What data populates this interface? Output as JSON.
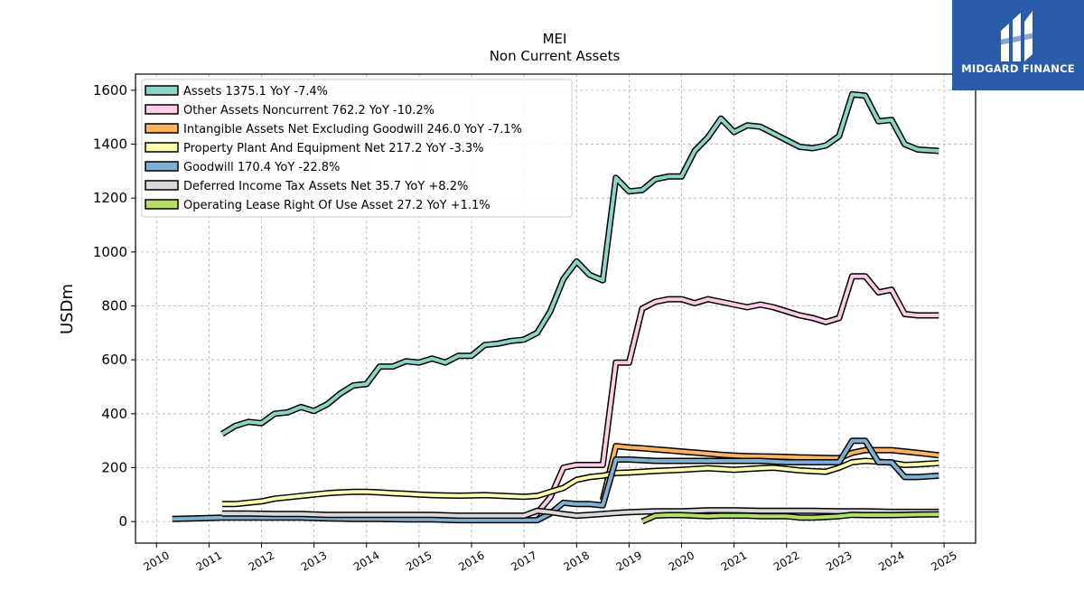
{
  "header": {
    "title": "MEI",
    "subtitle": "Non Current  Assets"
  },
  "logo": {
    "text": "MIDGARD FINANCE",
    "background": "#2a5caa"
  },
  "chart_data": {
    "type": "line",
    "ylabel": "USDm",
    "xlabel": "",
    "xlim": [
      2009.6,
      2025.6
    ],
    "ylim": [
      -80,
      1660
    ],
    "x_ticks": [
      "2010",
      "2011",
      "2012",
      "2013",
      "2014",
      "2015",
      "2016",
      "2017",
      "2018",
      "2019",
      "2020",
      "2021",
      "2022",
      "2023",
      "2024",
      "2025"
    ],
    "y_ticks": [
      "0",
      "200",
      "400",
      "600",
      "800",
      "1000",
      "1200",
      "1400",
      "1600"
    ],
    "grid": true,
    "legend_position": "upper-left",
    "series": [
      {
        "name": "Assets  1375.1 YoY -7.4%",
        "color": "#8dd3c7",
        "x": [
          2011.25,
          2011.5,
          2011.75,
          2012.0,
          2012.25,
          2012.5,
          2012.75,
          2013.0,
          2013.25,
          2013.5,
          2013.75,
          2014.0,
          2014.25,
          2014.5,
          2014.75,
          2015.0,
          2015.25,
          2015.5,
          2015.75,
          2016.0,
          2016.25,
          2016.5,
          2016.75,
          2017.0,
          2017.25,
          2017.5,
          2017.75,
          2018.0,
          2018.25,
          2018.5,
          2018.75,
          2019.0,
          2019.25,
          2019.5,
          2019.75,
          2020.0,
          2020.25,
          2020.5,
          2020.75,
          2021.0,
          2021.25,
          2021.5,
          2021.75,
          2022.0,
          2022.25,
          2022.5,
          2022.75,
          2023.0,
          2023.25,
          2023.5,
          2023.75,
          2024.0,
          2024.25,
          2024.5,
          2024.9
        ],
        "values": [
          325,
          355,
          370,
          365,
          400,
          405,
          425,
          410,
          435,
          475,
          505,
          510,
          575,
          575,
          595,
          590,
          605,
          590,
          615,
          615,
          655,
          660,
          670,
          675,
          700,
          780,
          900,
          965,
          915,
          895,
          1275,
          1225,
          1230,
          1270,
          1280,
          1280,
          1375,
          1425,
          1495,
          1445,
          1470,
          1465,
          1440,
          1415,
          1390,
          1385,
          1395,
          1430,
          1585,
          1580,
          1485,
          1490,
          1400,
          1380,
          1375
        ]
      },
      {
        "name": "Other Assets Noncurrent  762.2 YoY -10.2%",
        "color": "#fccde5",
        "x": [
          2017.2,
          2017.5,
          2017.75,
          2018.0,
          2018.25,
          2018.5,
          2018.75,
          2019.0,
          2019.25,
          2019.5,
          2019.75,
          2020.0,
          2020.25,
          2020.5,
          2020.75,
          2021.0,
          2021.25,
          2021.5,
          2021.75,
          2022.0,
          2022.25,
          2022.5,
          2022.75,
          2023.0,
          2023.25,
          2023.5,
          2023.75,
          2024.0,
          2024.25,
          2024.5,
          2024.9
        ],
        "values": [
          20,
          90,
          200,
          210,
          210,
          210,
          590,
          590,
          790,
          815,
          825,
          825,
          810,
          825,
          815,
          805,
          795,
          805,
          795,
          780,
          765,
          755,
          740,
          755,
          910,
          910,
          850,
          860,
          770,
          765,
          765
        ]
      },
      {
        "name": "Intangible Assets Net Excluding Goodwill  246.0 YoY -7.1%",
        "color": "#fdb462",
        "x": [
          2018.5,
          2018.75,
          2019.0,
          2019.25,
          2019.5,
          2019.75,
          2020.0,
          2020.25,
          2020.5,
          2020.75,
          2021.0,
          2021.25,
          2021.5,
          2021.75,
          2022.0,
          2022.25,
          2022.5,
          2022.75,
          2023.0,
          2023.25,
          2023.5,
          2023.75,
          2024.0,
          2024.25,
          2024.5,
          2024.9
        ],
        "values": [
          80,
          280,
          275,
          272,
          268,
          264,
          260,
          256,
          252,
          248,
          245,
          243,
          242,
          241,
          240,
          238,
          237,
          236,
          235,
          255,
          265,
          265,
          265,
          260,
          255,
          246
        ]
      },
      {
        "name": "Property Plant And Equipment Net  217.2 YoY -3.3%",
        "color": "#ffffb3",
        "x": [
          2011.25,
          2011.5,
          2011.75,
          2012.0,
          2012.25,
          2012.5,
          2012.75,
          2013.0,
          2013.25,
          2013.5,
          2013.75,
          2014.0,
          2014.25,
          2014.5,
          2014.75,
          2015.0,
          2015.25,
          2015.5,
          2015.75,
          2016.0,
          2016.25,
          2016.5,
          2016.75,
          2017.0,
          2017.25,
          2017.5,
          2017.75,
          2018.0,
          2018.25,
          2018.5,
          2018.75,
          2019.0,
          2019.25,
          2019.5,
          2019.75,
          2020.0,
          2020.25,
          2020.5,
          2020.75,
          2021.0,
          2021.25,
          2021.5,
          2021.75,
          2022.0,
          2022.25,
          2022.5,
          2022.75,
          2023.0,
          2023.25,
          2023.5,
          2023.75,
          2024.0,
          2024.25,
          2024.5,
          2024.9
        ],
        "values": [
          65,
          65,
          70,
          75,
          85,
          90,
          95,
          100,
          105,
          108,
          110,
          110,
          108,
          105,
          103,
          100,
          98,
          97,
          96,
          97,
          98,
          96,
          94,
          92,
          95,
          110,
          125,
          155,
          165,
          170,
          180,
          182,
          185,
          188,
          190,
          192,
          195,
          198,
          195,
          192,
          195,
          198,
          200,
          195,
          190,
          187,
          185,
          200,
          220,
          225,
          222,
          218,
          210,
          212,
          217
        ]
      },
      {
        "name": "Goodwill  170.4 YoY -22.8%",
        "color": "#80b1d3",
        "x": [
          2010.3,
          2010.75,
          2011.25,
          2011.75,
          2012.25,
          2012.75,
          2013.25,
          2013.75,
          2014.25,
          2014.75,
          2015.25,
          2015.75,
          2016.25,
          2016.75,
          2017.0,
          2017.25,
          2017.5,
          2017.75,
          2018.0,
          2018.25,
          2018.5,
          2018.75,
          2019.0,
          2019.5,
          2020.0,
          2020.5,
          2021.0,
          2021.5,
          2022.0,
          2022.5,
          2023.0,
          2023.25,
          2023.5,
          2023.75,
          2024.0,
          2024.25,
          2024.5,
          2024.9
        ],
        "values": [
          10,
          12,
          15,
          15,
          15,
          15,
          12,
          10,
          10,
          8,
          8,
          5,
          5,
          5,
          5,
          5,
          30,
          70,
          65,
          65,
          60,
          230,
          230,
          225,
          225,
          225,
          225,
          225,
          220,
          220,
          220,
          300,
          300,
          220,
          220,
          165,
          165,
          170
        ]
      },
      {
        "name": "Deferred Income Tax Assets Net  35.7 YoY +8.2%",
        "color": "#d9d9d9",
        "x": [
          2011.25,
          2011.75,
          2012.25,
          2012.75,
          2013.25,
          2013.75,
          2014.25,
          2014.75,
          2015.25,
          2015.75,
          2016.25,
          2016.75,
          2017.0,
          2017.25,
          2017.5,
          2017.75,
          2018.0,
          2018.25,
          2018.5,
          2018.75,
          2019.0,
          2019.5,
          2020.0,
          2020.5,
          2021.0,
          2021.5,
          2022.0,
          2022.5,
          2023.0,
          2023.5,
          2024.0,
          2024.5,
          2024.9
        ],
        "values": [
          30,
          30,
          28,
          28,
          25,
          25,
          25,
          25,
          25,
          22,
          22,
          22,
          22,
          40,
          35,
          28,
          22,
          25,
          28,
          32,
          35,
          38,
          38,
          42,
          42,
          40,
          40,
          40,
          38,
          38,
          36,
          36,
          36
        ]
      },
      {
        "name": "Operating Lease Right Of Use Asset  27.2 YoY +1.1%",
        "color": "#b3de69",
        "x": [
          2019.25,
          2019.5,
          2019.75,
          2020.0,
          2020.25,
          2020.5,
          2020.75,
          2021.0,
          2021.25,
          2021.5,
          2021.75,
          2022.0,
          2022.25,
          2022.5,
          2022.75,
          2023.0,
          2023.25,
          2023.5,
          2023.75,
          2024.0,
          2024.25,
          2024.5,
          2024.9
        ],
        "values": [
          0,
          22,
          24,
          24,
          22,
          20,
          22,
          22,
          22,
          20,
          20,
          20,
          15,
          15,
          17,
          20,
          25,
          24,
          24,
          24,
          25,
          26,
          27
        ]
      }
    ]
  }
}
